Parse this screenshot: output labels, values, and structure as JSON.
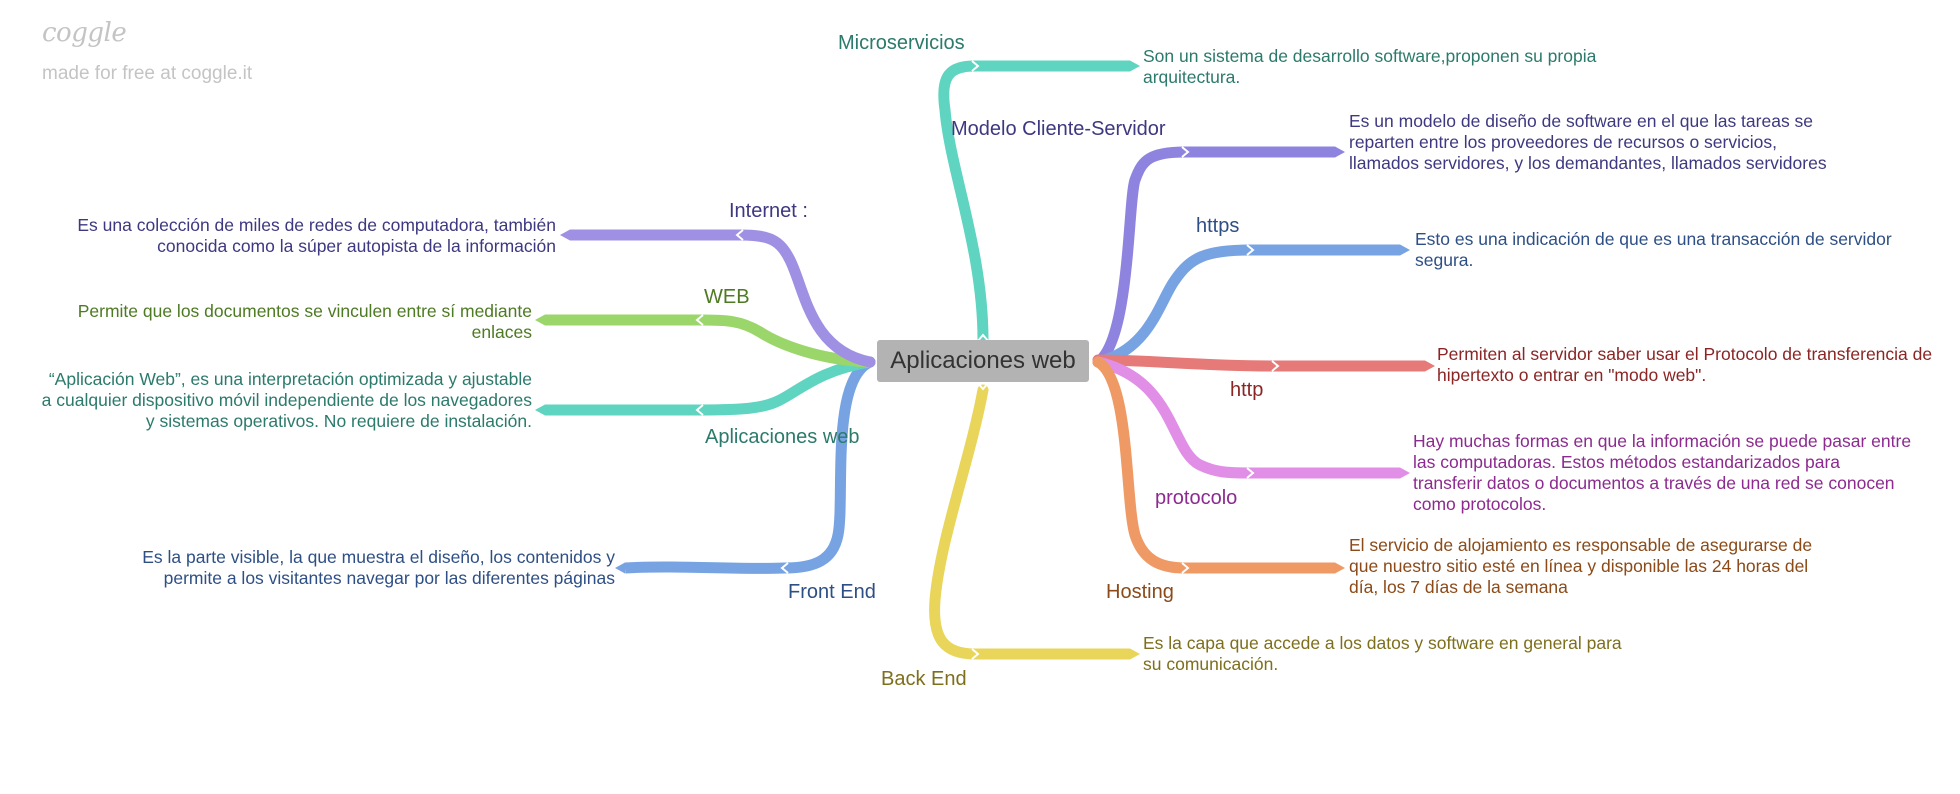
{
  "brand": {
    "logo": "coggle",
    "tagline": "made for free at coggle.it"
  },
  "root": {
    "label": "Aplicaciones web",
    "color": "#b3b3b3"
  },
  "branches": [
    {
      "id": "microservicios",
      "label": "Microservicios",
      "color": "#5fd4c0",
      "text_color": "#2b7a6b",
      "leaf": "Son un sistema de desarrollo software,proponen su propia arquitectura."
    },
    {
      "id": "modelo-cliente-servidor",
      "label": "Modelo Cliente-Servidor",
      "color": "#8e84e0",
      "text_color": "#3d3880",
      "leaf": "Es un modelo de diseño de software en el que las tareas se reparten entre los proveedores de recursos o servicios, llamados servidores, y los demandantes, llamados servidores"
    },
    {
      "id": "https",
      "label": "https",
      "color": "#77a3e3",
      "text_color": "#2e4f85",
      "leaf": "Esto es una indicación de que es una transacción de servidor segura."
    },
    {
      "id": "http",
      "label": "http",
      "color": "#e57a78",
      "text_color": "#8b2525",
      "leaf": "Permiten al servidor saber usar el Protocolo de transferencia de hipertexto o entrar en \"modo web\"."
    },
    {
      "id": "protocolo",
      "label": "protocolo",
      "color": "#e08ee6",
      "text_color": "#8c2a8f",
      "leaf": "Hay muchas formas en que la información se puede pasar entre las computadoras. Estos métodos estandarizados para transferir datos o documentos a través de una red se conocen como protocolos."
    },
    {
      "id": "hosting",
      "label": "Hosting",
      "color": "#ef9a65",
      "text_color": "#8b4a18",
      "leaf": "El servicio de alojamiento es responsable de asegurarse de que nuestro sitio esté en línea y disponible las 24 horas del día, los 7 días de la semana"
    },
    {
      "id": "back-end",
      "label": "Back End",
      "color": "#e8d55a",
      "text_color": "#7d6f1c",
      "leaf": "Es la capa que accede a los datos y software en general para su comunicación."
    },
    {
      "id": "front-end",
      "label": "Front End",
      "color": "#77a3e3",
      "text_color": "#2e4f85",
      "leaf": "Es la parte visible, la que muestra el diseño, los contenidos y permite a los visitantes navegar por las diferentes páginas"
    },
    {
      "id": "aplicaciones-web",
      "label": "Aplicaciones web",
      "color": "#5fd4c0",
      "text_color": "#2b7a6b",
      "leaf": "“Aplicación Web”, es una interpretación optimizada y ajustable a cualquier dispositivo móvil independiente de los navegadores y sistemas operativos. No requiere de instalación."
    },
    {
      "id": "web",
      "label": "WEB",
      "color": "#9bd66a",
      "text_color": "#4d7a22",
      "leaf": "Permite que los documentos se vinculen entre sí mediante enlaces"
    },
    {
      "id": "internet",
      "label": "Internet :",
      "color": "#9f90e3",
      "text_color": "#3d3880",
      "leaf": "Es una colección de miles de redes de computadora, también conocida como la súper autopista de la información"
    }
  ]
}
